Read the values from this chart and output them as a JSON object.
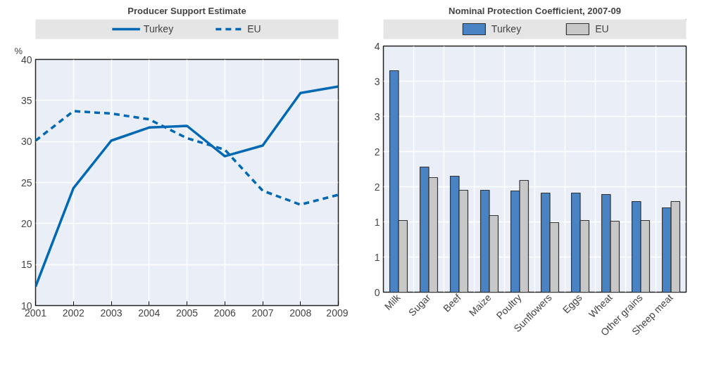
{
  "chart_data": [
    {
      "type": "line",
      "title": "Producer Support Estimate",
      "ylabel": "%",
      "x": [
        2001,
        2002,
        2003,
        2004,
        2005,
        2006,
        2007,
        2008,
        2009
      ],
      "series": [
        {
          "name": "Turkey",
          "color": "#0068b4",
          "line_style": "solid",
          "values": [
            12.3,
            24.3,
            30.1,
            31.7,
            31.9,
            28.2,
            29.5,
            35.9,
            36.7
          ]
        },
        {
          "name": "EU",
          "color": "#0068b4",
          "line_style": "dashed",
          "values": [
            30.1,
            33.7,
            33.4,
            32.7,
            30.4,
            29.0,
            24.0,
            22.3,
            23.5
          ]
        }
      ],
      "xlim": [
        2001,
        2009
      ],
      "xticks": [
        2001,
        2002,
        2003,
        2004,
        2005,
        2006,
        2007,
        2008,
        2009
      ],
      "ylim": [
        10,
        40
      ],
      "yticks": [
        10,
        15,
        20,
        25,
        30,
        35,
        40
      ],
      "grid": true,
      "legend": "top",
      "marker": "none"
    },
    {
      "type": "bar",
      "title": "Nominal Protection Coefficient, 2007-09",
      "categories": [
        "Milk",
        "Sugar",
        "Beef",
        "Maize",
        "Poultry",
        "Sunflowers",
        "Eggs",
        "Wheat",
        "Other grains",
        "Sheep meat"
      ],
      "series": [
        {
          "name": "Turkey",
          "color": "#4a83c4",
          "values": [
            3.15,
            1.78,
            1.65,
            1.45,
            1.44,
            1.41,
            1.41,
            1.39,
            1.29,
            1.2
          ]
        },
        {
          "name": "EU",
          "color": "#c8c8c8",
          "values": [
            1.02,
            1.63,
            1.45,
            1.09,
            1.59,
            0.99,
            1.02,
            1.01,
            1.02,
            1.29
          ]
        }
      ],
      "ylim": [
        0,
        3.5
      ],
      "yticks": [
        0,
        {
          "value": 0.5,
          "label": "1"
        },
        1,
        {
          "value": 1.5,
          "label": "2"
        },
        2,
        {
          "value": 2.5,
          "label": "3"
        },
        3,
        {
          "value": 3.5,
          "label": "4"
        }
      ],
      "grid": true,
      "legend": "top"
    }
  ]
}
